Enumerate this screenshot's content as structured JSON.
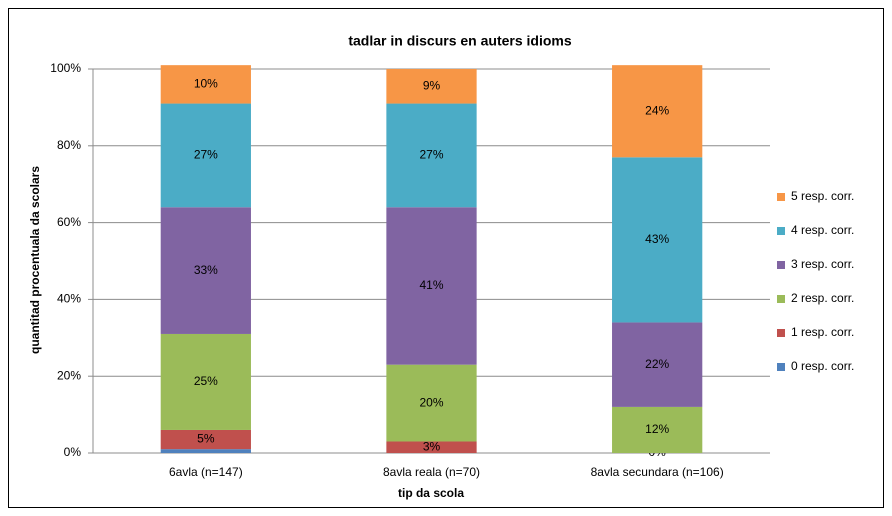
{
  "chart_data": {
    "type": "stacked_bar",
    "title": "tadlar in discurs en auters idioms",
    "x_label": "tip da scola",
    "y_label": "quantitad procentuala da scolars",
    "categories": [
      "6avla (n=147)",
      "8avla reala (n=70)",
      "8avla secundara (n=106)"
    ],
    "series": [
      {
        "name": "0 resp. corr.",
        "color": "#4f81bd",
        "values": [
          1,
          0,
          0
        ],
        "value_labels": [
          null,
          null,
          null
        ]
      },
      {
        "name": "1 resp. corr.",
        "color": "#c0504d",
        "values": [
          5,
          3,
          0
        ],
        "value_labels": [
          "5%",
          "3%",
          "0%"
        ]
      },
      {
        "name": "2 resp. corr.",
        "color": "#9bbb59",
        "values": [
          25,
          20,
          12
        ],
        "value_labels": [
          "25%",
          "20%",
          "12%"
        ]
      },
      {
        "name": "3 resp. corr.",
        "color": "#8064a2",
        "values": [
          33,
          41,
          22
        ],
        "value_labels": [
          "33%",
          "41%",
          "22%"
        ]
      },
      {
        "name": "4 resp. corr.",
        "color": "#4bacc6",
        "values": [
          27,
          27,
          43
        ],
        "value_labels": [
          "27%",
          "27%",
          "43%"
        ]
      },
      {
        "name": "5 resp. corr.",
        "color": "#f79646",
        "values": [
          10,
          9,
          24
        ],
        "value_labels": [
          "10%",
          "9%",
          "24%"
        ]
      }
    ],
    "ylim": [
      0,
      100
    ],
    "yticks": [
      {
        "value": 0,
        "label": "0%"
      },
      {
        "value": 20,
        "label": "20%"
      },
      {
        "value": 40,
        "label": "40%"
      },
      {
        "value": 60,
        "label": "60%"
      },
      {
        "value": 80,
        "label": "80%"
      },
      {
        "value": 100,
        "label": "100%"
      }
    ],
    "grid": true,
    "legend": "right"
  }
}
